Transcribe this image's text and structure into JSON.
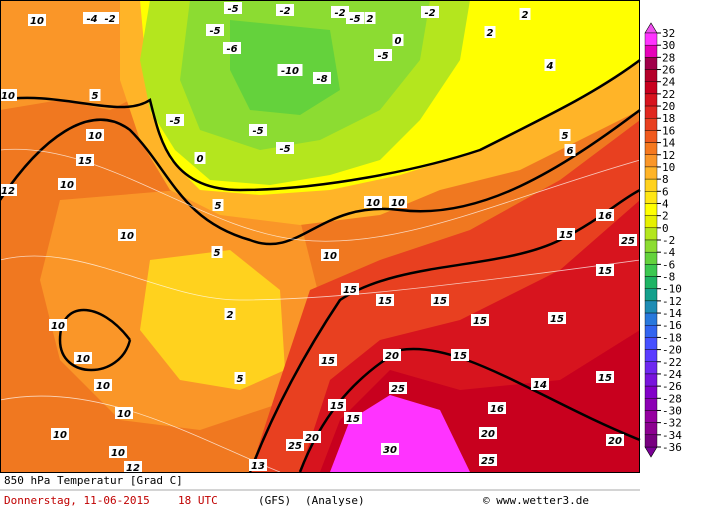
{
  "map": {
    "labels": [
      10,
      -4,
      -2,
      -5,
      -2,
      -2,
      -5,
      2,
      -2,
      2,
      2,
      0,
      -6,
      -5,
      -10,
      -8,
      -5,
      4,
      10,
      5,
      -5,
      -5,
      -5,
      0,
      10,
      15,
      10,
      5,
      6,
      12,
      10,
      5,
      5,
      10,
      10,
      16,
      15,
      25,
      10,
      15,
      15,
      15,
      15,
      15,
      15,
      10,
      2,
      10,
      10,
      5,
      15,
      20,
      15,
      25,
      15,
      15,
      14,
      15,
      16,
      10,
      10,
      10,
      20,
      25,
      30,
      20,
      20,
      25,
      12,
      13
    ]
  },
  "colorbar": {
    "levels": [
      32,
      30,
      28,
      26,
      24,
      22,
      20,
      18,
      16,
      14,
      12,
      10,
      8,
      6,
      4,
      2,
      0,
      -2,
      -4,
      -6,
      -8,
      -10,
      -12,
      -14,
      -16,
      -18,
      -20,
      -22,
      -24,
      -26,
      -28,
      -30,
      -32,
      -34,
      -36
    ],
    "colors": [
      "#ff33ff",
      "#e600b8",
      "#a0004a",
      "#b4002a",
      "#c8001e",
      "#d7141e",
      "#e02820",
      "#e84020",
      "#f05a1e",
      "#f5781e",
      "#fa9628",
      "#ffb428",
      "#ffd21e",
      "#ffe614",
      "#ffff00",
      "#e6f000",
      "#b4e61e",
      "#8cdc32",
      "#64d23c",
      "#3cc850",
      "#1eb464",
      "#14a08c",
      "#1e8cb4",
      "#2878dc",
      "#3264f0",
      "#4650ff",
      "#5a3cff",
      "#6e28f0",
      "#7814dc",
      "#8200c8",
      "#8c00b4",
      "#9600a0",
      "#8c0090",
      "#780080"
    ],
    "top_color": "#f050f0",
    "bottom_color": "#7a0096"
  },
  "footer": {
    "title": "850 hPa Temperatur [Grad C]",
    "date": "Donnerstag, 11-06-2015",
    "time": "18 UTC",
    "model": "(GFS)",
    "run": "(Analyse)",
    "source": "© www.wetter3.de"
  }
}
